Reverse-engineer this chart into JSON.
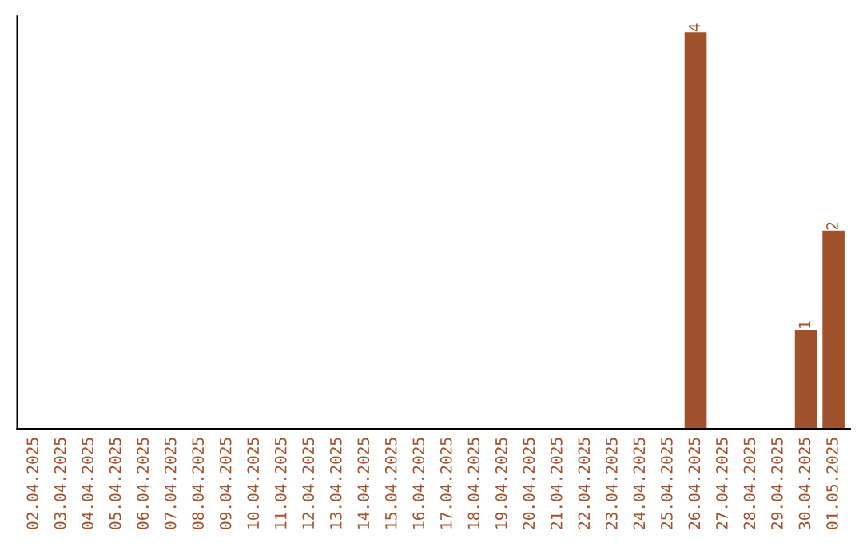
{
  "chart_data": {
    "type": "bar",
    "categories": [
      "02.04.2025",
      "03.04.2025",
      "04.04.2025",
      "05.04.2025",
      "06.04.2025",
      "07.04.2025",
      "08.04.2025",
      "09.04.2025",
      "10.04.2025",
      "11.04.2025",
      "12.04.2025",
      "13.04.2025",
      "14.04.2025",
      "15.04.2025",
      "16.04.2025",
      "17.04.2025",
      "18.04.2025",
      "19.04.2025",
      "20.04.2025",
      "21.04.2025",
      "22.04.2025",
      "23.04.2025",
      "24.04.2025",
      "25.04.2025",
      "26.04.2025",
      "27.04.2025",
      "28.04.2025",
      "29.04.2025",
      "30.04.2025",
      "01.05.2025"
    ],
    "values": [
      null,
      null,
      null,
      null,
      null,
      null,
      null,
      null,
      null,
      null,
      null,
      null,
      null,
      null,
      null,
      null,
      null,
      null,
      null,
      null,
      null,
      null,
      null,
      null,
      4,
      null,
      null,
      null,
      1,
      2
    ],
    "data_labels": true,
    "color": "#a0522d",
    "tick_labels": "x",
    "grid": false
  }
}
